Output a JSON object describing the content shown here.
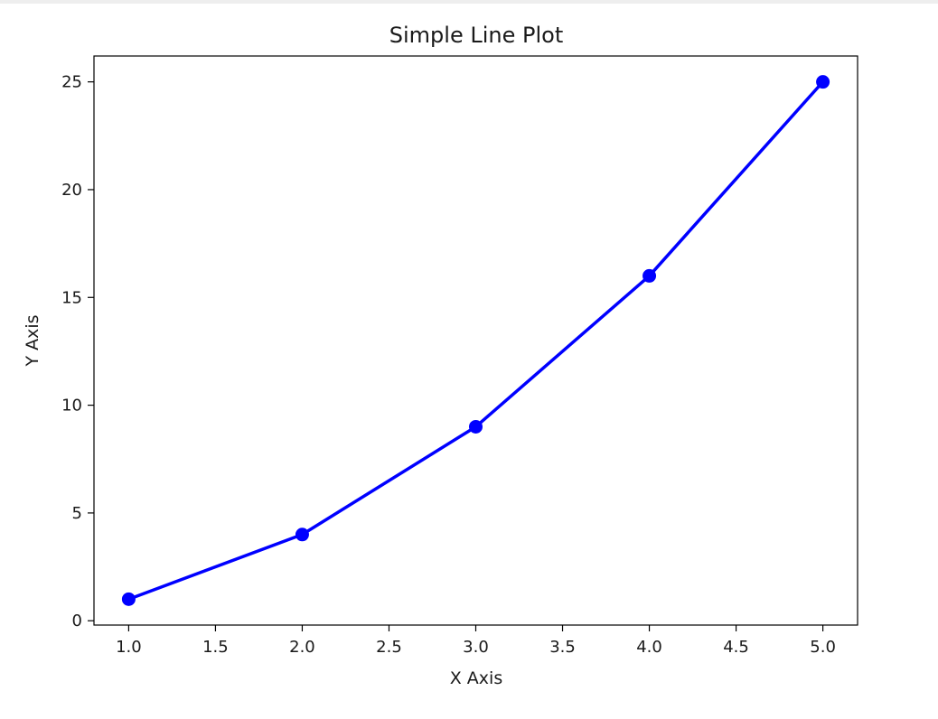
{
  "chart_data": {
    "type": "line",
    "title": "Simple Line Plot",
    "xlabel": "X Axis",
    "ylabel": "Y Axis",
    "x": [
      1,
      2,
      3,
      4,
      5
    ],
    "series": [
      {
        "values": [
          1,
          4,
          9,
          16,
          25
        ],
        "color": "#0000ff",
        "marker": "circle"
      }
    ],
    "xlim": [
      0.8,
      5.2
    ],
    "ylim": [
      -0.2,
      26.2
    ],
    "xticks": [
      "1.0",
      "1.5",
      "2.0",
      "2.5",
      "3.0",
      "3.5",
      "4.0",
      "4.5",
      "5.0"
    ],
    "yticks": [
      "0",
      "5",
      "10",
      "15",
      "20",
      "25"
    ],
    "grid": false,
    "legend": "none"
  }
}
